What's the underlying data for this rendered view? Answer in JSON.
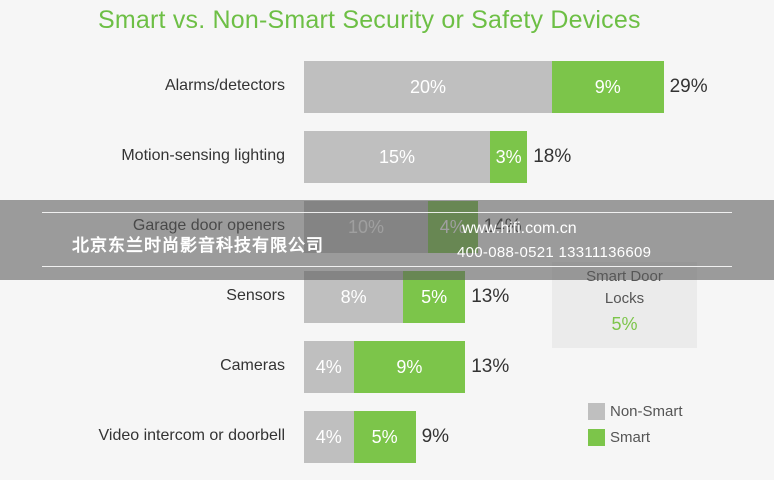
{
  "chart_data": {
    "type": "bar",
    "orientation": "horizontal",
    "stacked": true,
    "title": "Smart vs. Non-Smart Security or Safety Devices",
    "categories": [
      "Alarms/detectors",
      "Motion-sensing lighting",
      "Garage door openers",
      "Sensors",
      "Cameras",
      "Video intercom or doorbell"
    ],
    "series": [
      {
        "name": "Non-Smart",
        "values": [
          20,
          15,
          10,
          8,
          4,
          4
        ],
        "labels": [
          "20%",
          "15%",
          "10%",
          "8%",
          "4%",
          "4%"
        ],
        "color": "#bfbfbf"
      },
      {
        "name": "Smart",
        "values": [
          9,
          3,
          4,
          5,
          9,
          5
        ],
        "labels": [
          "9%",
          "3%",
          "4%",
          "5%",
          "9%",
          "5%"
        ],
        "color": "#7cc54a"
      }
    ],
    "totals": [
      "29%",
      "18%",
      "14%",
      "13%",
      "13%",
      "9%"
    ],
    "legend_position": "bottom-right",
    "grid": false
  },
  "callout": {
    "line1": "Smart Door",
    "line2": "Locks",
    "value": "5%"
  },
  "legend": {
    "items": [
      {
        "label": "Non-Smart",
        "color": "#bfbfbf"
      },
      {
        "label": "Smart",
        "color": "#7cc54a"
      }
    ]
  },
  "watermark": {
    "company": "北京东兰时尚影音科技有限公司",
    "website": "www.hifi.com.cn",
    "phones": "400-088-0521  13311136609"
  }
}
